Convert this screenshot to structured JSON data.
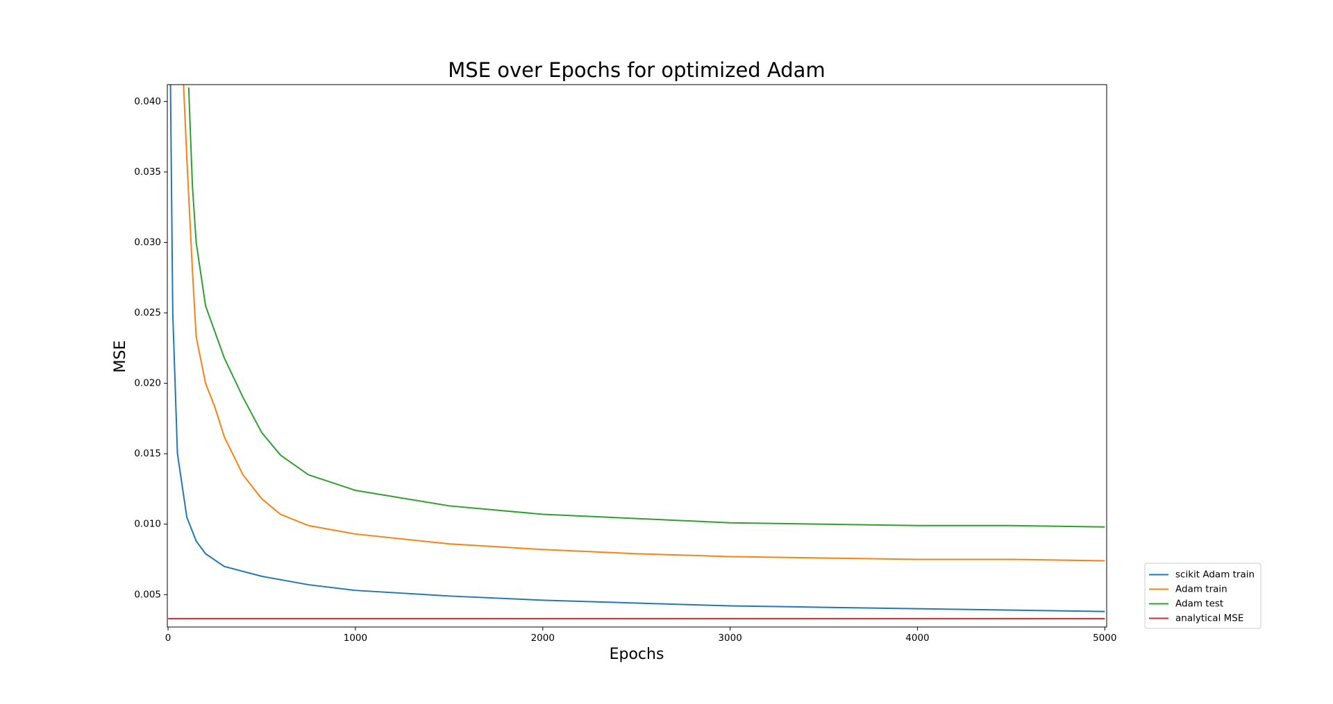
{
  "chart_data": {
    "type": "line",
    "title": "MSE over Epochs for optimized Adam",
    "x_label": "Epochs",
    "y_label": "MSE",
    "xlim": [
      -4,
      5010
    ],
    "ylim": [
      0.0027,
      0.0412
    ],
    "xticks": [
      0,
      1000,
      2000,
      3000,
      4000,
      5000
    ],
    "yticks": [
      0.005,
      {
        "value": 0.01,
        "label": "0.010"
      },
      0.015,
      {
        "value": 0.02,
        "label": "0.020"
      },
      0.025,
      {
        "value": 0.03,
        "label": "0.030"
      },
      0.035,
      {
        "value": 0.04,
        "label": "0.040"
      }
    ],
    "legend": "outside-lower-right",
    "grid": false,
    "series": [
      {
        "name": "scikit Adam train",
        "color": "#1f77b4",
        "x": [
          10,
          25,
          50,
          100,
          150,
          200,
          300,
          500,
          750,
          1000,
          1500,
          2000,
          2500,
          3000,
          3500,
          4000,
          4500,
          5000
        ],
        "values": [
          0.045,
          0.025,
          0.015,
          0.0105,
          0.0088,
          0.0079,
          0.007,
          0.0063,
          0.0057,
          0.0053,
          0.0049,
          0.0046,
          0.0044,
          0.0042,
          0.0041,
          0.004,
          0.0039,
          0.0038
        ]
      },
      {
        "name": "Adam train",
        "color": "#ff7f0e",
        "x": [
          80,
          100,
          130,
          150,
          200,
          250,
          300,
          400,
          500,
          600,
          750,
          1000,
          1500,
          2000,
          2500,
          3000,
          3500,
          4000,
          4500,
          5000
        ],
        "values": [
          0.042,
          0.036,
          0.028,
          0.0233,
          0.02,
          0.0183,
          0.0162,
          0.0135,
          0.0118,
          0.0107,
          0.0099,
          0.0093,
          0.0086,
          0.0082,
          0.0079,
          0.0077,
          0.0076,
          0.0075,
          0.0075,
          0.0074
        ]
      },
      {
        "name": "Adam test",
        "color": "#2ca02c",
        "x": [
          110,
          130,
          150,
          200,
          300,
          400,
          500,
          600,
          750,
          1000,
          1500,
          2000,
          2500,
          3000,
          3500,
          4000,
          4500,
          5000
        ],
        "values": [
          0.041,
          0.034,
          0.03,
          0.0255,
          0.0218,
          0.019,
          0.0165,
          0.0149,
          0.0135,
          0.0124,
          0.0113,
          0.0107,
          0.0104,
          0.0101,
          0.01,
          0.0099,
          0.0099,
          0.0098
        ]
      },
      {
        "name": "analytical MSE",
        "color": "#d62728",
        "x": [
          0,
          5000
        ],
        "values": [
          0.0033,
          0.0033
        ]
      }
    ]
  }
}
